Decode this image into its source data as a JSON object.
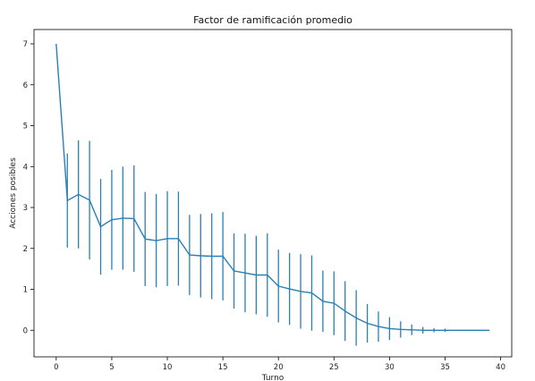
{
  "chart_data": {
    "type": "line",
    "title": "Factor de ramificación promedio",
    "xlabel": "Turno",
    "ylabel": "Acciones posibles",
    "xlim": [
      -2,
      41
    ],
    "ylim": [
      -0.65,
      7.35
    ],
    "xticks": [
      0,
      5,
      10,
      15,
      20,
      25,
      30,
      35,
      40
    ],
    "yticks": [
      0,
      1,
      2,
      3,
      4,
      5,
      6,
      7
    ],
    "grid": false,
    "legend": "none",
    "color": "#2a7fb5",
    "series": [
      {
        "x": [
          0,
          1,
          2,
          3,
          4,
          5,
          6,
          7,
          8,
          9,
          10,
          11,
          12,
          13,
          14,
          15,
          16,
          17,
          18,
          19,
          20,
          21,
          22,
          23,
          24,
          25,
          26,
          27,
          28,
          29,
          30,
          31,
          32,
          33,
          34,
          35,
          36,
          37,
          38,
          39
        ],
        "y": [
          7.0,
          3.17,
          3.32,
          3.18,
          2.53,
          2.7,
          2.74,
          2.73,
          2.23,
          2.19,
          2.24,
          2.24,
          1.84,
          1.82,
          1.81,
          1.81,
          1.45,
          1.4,
          1.35,
          1.35,
          1.08,
          1.01,
          0.95,
          0.91,
          0.71,
          0.66,
          0.47,
          0.3,
          0.17,
          0.09,
          0.04,
          0.02,
          0.01,
          0.0,
          0.0,
          0.0,
          0.0,
          0.0,
          0.0,
          0.0
        ],
        "err": [
          0.0,
          1.15,
          1.32,
          1.45,
          1.17,
          1.22,
          1.26,
          1.3,
          1.15,
          1.14,
          1.16,
          1.15,
          0.98,
          1.02,
          1.05,
          1.08,
          0.92,
          0.96,
          0.96,
          1.02,
          0.89,
          0.88,
          0.91,
          0.92,
          0.75,
          0.78,
          0.73,
          0.68,
          0.47,
          0.37,
          0.28,
          0.2,
          0.13,
          0.08,
          0.05,
          0.04,
          0.0,
          0.0,
          0.0,
          0.0
        ]
      }
    ]
  }
}
